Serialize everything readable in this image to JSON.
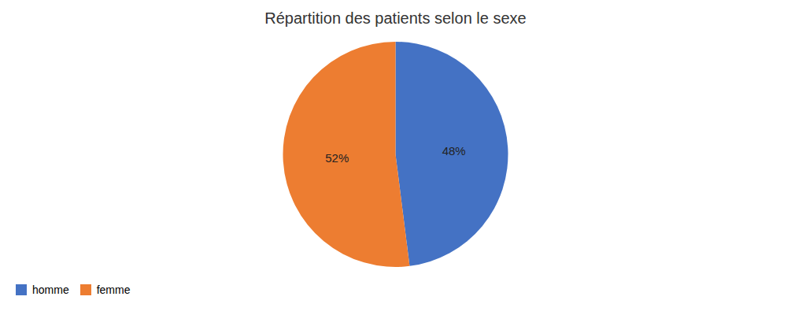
{
  "chart_data": {
    "type": "pie",
    "title": "Répartition des patients selon le sexe",
    "categories": [
      "homme",
      "femme"
    ],
    "values": [
      48,
      52
    ],
    "value_labels": [
      "48%",
      "52%"
    ],
    "colors": [
      "#4472C4",
      "#ED7D31"
    ],
    "data_labels": true,
    "legend": "lower left"
  }
}
